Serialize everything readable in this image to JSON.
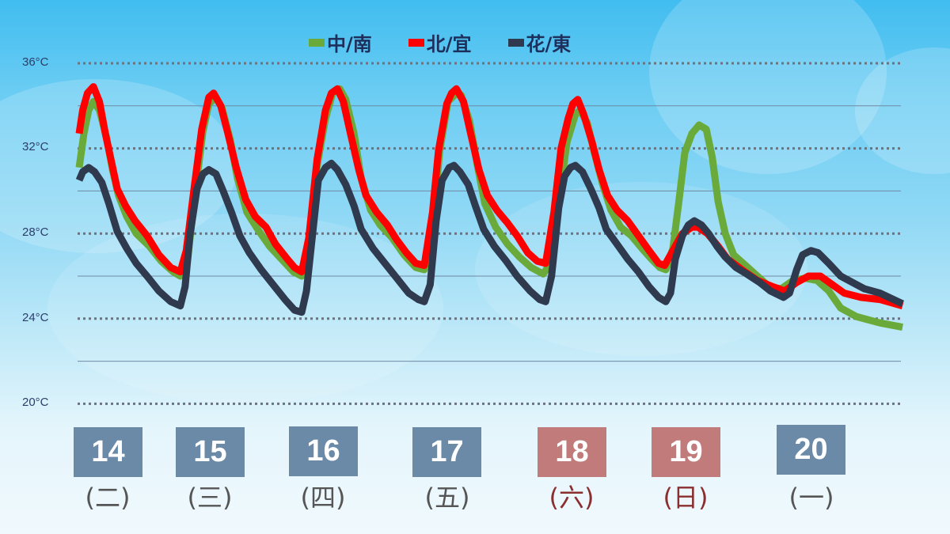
{
  "chart_data": {
    "type": "line",
    "title": "",
    "xlabel": "",
    "ylabel": "",
    "ylim": [
      20,
      36
    ],
    "yticks": [
      "36°C",
      "32°C",
      "28°C",
      "24°C",
      "20°C"
    ],
    "grid": "dotted at 36/32/28/24/20, solid at 34/30/26/22",
    "legend_position": "top",
    "categories": [
      {
        "date": "14",
        "weekday": "(二)",
        "weekend": false
      },
      {
        "date": "15",
        "weekday": "(三)",
        "weekend": false
      },
      {
        "date": "16",
        "weekday": "(四)",
        "weekend": false
      },
      {
        "date": "17",
        "weekday": "(五)",
        "weekend": false
      },
      {
        "date": "18",
        "weekday": "(六)",
        "weekend": true
      },
      {
        "date": "19",
        "weekday": "(日)",
        "weekend": true
      },
      {
        "date": "20",
        "weekday": "(一)",
        "weekend": false
      }
    ],
    "x_note": "x = position in days from chart start (0 = left edge of lines)",
    "series": [
      {
        "name": "中/南",
        "color": "#6aaa3a",
        "points": [
          [
            0,
            31.1
          ],
          [
            0.04,
            32.7
          ],
          [
            0.08,
            33.8
          ],
          [
            0.12,
            34.2
          ],
          [
            0.17,
            33.8
          ],
          [
            0.23,
            32.5
          ],
          [
            0.28,
            31.0
          ],
          [
            0.33,
            29.8
          ],
          [
            0.4,
            28.8
          ],
          [
            0.48,
            28.0
          ],
          [
            0.59,
            27.4
          ],
          [
            0.69,
            26.7
          ],
          [
            0.79,
            26.2
          ],
          [
            0.85,
            26.0
          ],
          [
            0.91,
            26.7
          ],
          [
            0.97,
            29.7
          ],
          [
            1.04,
            32.8
          ],
          [
            1.09,
            34.1
          ],
          [
            1.15,
            34.4
          ],
          [
            1.2,
            33.9
          ],
          [
            1.27,
            32.4
          ],
          [
            1.33,
            30.6
          ],
          [
            1.41,
            29.0
          ],
          [
            1.5,
            28.2
          ],
          [
            1.6,
            27.4
          ],
          [
            1.7,
            26.8
          ],
          [
            1.8,
            26.2
          ],
          [
            1.87,
            26.0
          ],
          [
            1.93,
            27.5
          ],
          [
            2.0,
            31.2
          ],
          [
            2.07,
            33.4
          ],
          [
            2.13,
            34.6
          ],
          [
            2.19,
            34.8
          ],
          [
            2.24,
            34.3
          ],
          [
            2.31,
            32.7
          ],
          [
            2.37,
            30.6
          ],
          [
            2.45,
            29.1
          ],
          [
            2.53,
            28.4
          ],
          [
            2.63,
            27.8
          ],
          [
            2.73,
            27.0
          ],
          [
            2.83,
            26.4
          ],
          [
            2.9,
            26.3
          ],
          [
            2.97,
            28.2
          ],
          [
            3.03,
            31.9
          ],
          [
            3.1,
            34.2
          ],
          [
            3.17,
            34.6
          ],
          [
            3.21,
            34.5
          ],
          [
            3.28,
            33.3
          ],
          [
            3.35,
            31.1
          ],
          [
            3.41,
            29.4
          ],
          [
            3.5,
            28.3
          ],
          [
            3.6,
            27.5
          ],
          [
            3.7,
            26.9
          ],
          [
            3.8,
            26.4
          ],
          [
            3.9,
            26.1
          ],
          [
            3.97,
            26.7
          ],
          [
            4.03,
            29.5
          ],
          [
            4.1,
            32.3
          ],
          [
            4.17,
            33.6
          ],
          [
            4.21,
            33.8
          ],
          [
            4.27,
            33.2
          ],
          [
            4.33,
            31.8
          ],
          [
            4.4,
            30.3
          ],
          [
            4.47,
            29.1
          ],
          [
            4.55,
            28.3
          ],
          [
            4.64,
            27.9
          ],
          [
            4.73,
            27.3
          ],
          [
            4.81,
            26.8
          ],
          [
            4.88,
            26.4
          ],
          [
            4.93,
            26.3
          ],
          [
            4.99,
            27.3
          ],
          [
            5.04,
            29.5
          ],
          [
            5.09,
            31.8
          ],
          [
            5.15,
            32.7
          ],
          [
            5.21,
            33.1
          ],
          [
            5.27,
            32.9
          ],
          [
            5.32,
            31.6
          ],
          [
            5.37,
            29.5
          ],
          [
            5.43,
            28.0
          ],
          [
            5.5,
            27.0
          ],
          [
            5.6,
            26.5
          ],
          [
            5.7,
            26.0
          ],
          [
            5.8,
            25.5
          ],
          [
            5.9,
            25.4
          ],
          [
            6.0,
            25.8
          ],
          [
            6.1,
            25.9
          ],
          [
            6.2,
            25.8
          ],
          [
            6.3,
            25.3
          ],
          [
            6.4,
            24.5
          ],
          [
            6.53,
            24.1
          ],
          [
            6.73,
            23.8
          ],
          [
            6.92,
            23.6
          ]
        ]
      },
      {
        "name": "北/宜",
        "color": "#ff0000",
        "points": [
          [
            0,
            32.7
          ],
          [
            0.03,
            33.8
          ],
          [
            0.07,
            34.6
          ],
          [
            0.12,
            34.9
          ],
          [
            0.17,
            34.2
          ],
          [
            0.22,
            32.7
          ],
          [
            0.27,
            31.4
          ],
          [
            0.32,
            30.1
          ],
          [
            0.39,
            29.3
          ],
          [
            0.47,
            28.6
          ],
          [
            0.57,
            27.9
          ],
          [
            0.67,
            27.0
          ],
          [
            0.77,
            26.4
          ],
          [
            0.85,
            26.2
          ],
          [
            0.9,
            27.2
          ],
          [
            0.97,
            30.3
          ],
          [
            1.03,
            32.9
          ],
          [
            1.09,
            34.4
          ],
          [
            1.13,
            34.6
          ],
          [
            1.19,
            34.0
          ],
          [
            1.25,
            32.7
          ],
          [
            1.32,
            31.1
          ],
          [
            1.4,
            29.6
          ],
          [
            1.48,
            28.8
          ],
          [
            1.57,
            28.3
          ],
          [
            1.65,
            27.5
          ],
          [
            1.75,
            26.8
          ],
          [
            1.81,
            26.4
          ],
          [
            1.87,
            26.2
          ],
          [
            1.93,
            27.8
          ],
          [
            2.0,
            31.5
          ],
          [
            2.07,
            33.8
          ],
          [
            2.12,
            34.6
          ],
          [
            2.17,
            34.8
          ],
          [
            2.22,
            34.2
          ],
          [
            2.28,
            32.7
          ],
          [
            2.35,
            31.0
          ],
          [
            2.41,
            29.8
          ],
          [
            2.5,
            29.0
          ],
          [
            2.59,
            28.4
          ],
          [
            2.67,
            27.7
          ],
          [
            2.75,
            27.1
          ],
          [
            2.83,
            26.6
          ],
          [
            2.9,
            26.5
          ],
          [
            2.97,
            29.0
          ],
          [
            3.02,
            31.9
          ],
          [
            3.09,
            34.1
          ],
          [
            3.13,
            34.6
          ],
          [
            3.17,
            34.8
          ],
          [
            3.23,
            34.2
          ],
          [
            3.29,
            32.7
          ],
          [
            3.36,
            31.0
          ],
          [
            3.43,
            29.8
          ],
          [
            3.51,
            29.1
          ],
          [
            3.6,
            28.5
          ],
          [
            3.68,
            27.9
          ],
          [
            3.77,
            27.1
          ],
          [
            3.85,
            26.7
          ],
          [
            3.92,
            26.6
          ],
          [
            3.99,
            29.0
          ],
          [
            4.05,
            32.0
          ],
          [
            4.11,
            33.4
          ],
          [
            4.15,
            34.1
          ],
          [
            4.19,
            34.3
          ],
          [
            4.24,
            33.6
          ],
          [
            4.31,
            32.3
          ],
          [
            4.37,
            31.0
          ],
          [
            4.44,
            29.8
          ],
          [
            4.52,
            29.1
          ],
          [
            4.61,
            28.6
          ],
          [
            4.7,
            27.9
          ],
          [
            4.79,
            27.2
          ],
          [
            4.87,
            26.6
          ],
          [
            4.92,
            26.5
          ],
          [
            4.99,
            27.2
          ],
          [
            5.07,
            28.0
          ],
          [
            5.15,
            28.3
          ],
          [
            5.2,
            28.3
          ],
          [
            5.28,
            28.0
          ],
          [
            5.37,
            27.4
          ],
          [
            5.45,
            26.8
          ],
          [
            5.57,
            26.3
          ],
          [
            5.7,
            25.8
          ],
          [
            5.83,
            25.5
          ],
          [
            5.93,
            25.3
          ],
          [
            6.03,
            25.7
          ],
          [
            6.13,
            26.0
          ],
          [
            6.23,
            26.0
          ],
          [
            6.33,
            25.6
          ],
          [
            6.43,
            25.2
          ],
          [
            6.57,
            25.0
          ],
          [
            6.73,
            24.9
          ],
          [
            6.92,
            24.6
          ]
        ]
      },
      {
        "name": "花/東",
        "color": "#2f3a4e",
        "points": [
          [
            0,
            30.5
          ],
          [
            0.03,
            30.9
          ],
          [
            0.08,
            31.1
          ],
          [
            0.13,
            30.9
          ],
          [
            0.19,
            30.4
          ],
          [
            0.25,
            29.4
          ],
          [
            0.32,
            28.1
          ],
          [
            0.4,
            27.3
          ],
          [
            0.48,
            26.6
          ],
          [
            0.57,
            26.0
          ],
          [
            0.67,
            25.3
          ],
          [
            0.77,
            24.8
          ],
          [
            0.85,
            24.6
          ],
          [
            0.89,
            25.5
          ],
          [
            0.93,
            27.9
          ],
          [
            0.99,
            30.1
          ],
          [
            1.04,
            30.8
          ],
          [
            1.09,
            31.0
          ],
          [
            1.15,
            30.8
          ],
          [
            1.21,
            30.0
          ],
          [
            1.28,
            29.0
          ],
          [
            1.35,
            27.9
          ],
          [
            1.43,
            27.1
          ],
          [
            1.53,
            26.3
          ],
          [
            1.63,
            25.6
          ],
          [
            1.73,
            24.9
          ],
          [
            1.81,
            24.4
          ],
          [
            1.87,
            24.3
          ],
          [
            1.91,
            25.3
          ],
          [
            1.96,
            27.9
          ],
          [
            2.01,
            30.5
          ],
          [
            2.07,
            31.1
          ],
          [
            2.12,
            31.3
          ],
          [
            2.17,
            31.0
          ],
          [
            2.24,
            30.3
          ],
          [
            2.31,
            29.3
          ],
          [
            2.37,
            28.2
          ],
          [
            2.47,
            27.3
          ],
          [
            2.57,
            26.6
          ],
          [
            2.67,
            25.9
          ],
          [
            2.77,
            25.2
          ],
          [
            2.85,
            24.9
          ],
          [
            2.9,
            24.8
          ],
          [
            2.95,
            25.6
          ],
          [
            3.0,
            28.6
          ],
          [
            3.05,
            30.5
          ],
          [
            3.11,
            31.1
          ],
          [
            3.15,
            31.2
          ],
          [
            3.2,
            30.9
          ],
          [
            3.27,
            30.3
          ],
          [
            3.33,
            29.3
          ],
          [
            3.4,
            28.2
          ],
          [
            3.49,
            27.4
          ],
          [
            3.59,
            26.7
          ],
          [
            3.68,
            26.0
          ],
          [
            3.79,
            25.3
          ],
          [
            3.87,
            24.9
          ],
          [
            3.92,
            24.8
          ],
          [
            3.97,
            26.0
          ],
          [
            4.03,
            29.2
          ],
          [
            4.08,
            30.7
          ],
          [
            4.13,
            31.1
          ],
          [
            4.17,
            31.2
          ],
          [
            4.23,
            30.9
          ],
          [
            4.3,
            30.1
          ],
          [
            4.37,
            29.2
          ],
          [
            4.43,
            28.2
          ],
          [
            4.52,
            27.5
          ],
          [
            4.61,
            26.8
          ],
          [
            4.7,
            26.2
          ],
          [
            4.79,
            25.5
          ],
          [
            4.87,
            25.0
          ],
          [
            4.93,
            24.8
          ],
          [
            4.97,
            25.2
          ],
          [
            5.01,
            26.8
          ],
          [
            5.07,
            27.9
          ],
          [
            5.12,
            28.4
          ],
          [
            5.17,
            28.6
          ],
          [
            5.23,
            28.4
          ],
          [
            5.29,
            28.0
          ],
          [
            5.36,
            27.4
          ],
          [
            5.43,
            26.9
          ],
          [
            5.52,
            26.4
          ],
          [
            5.61,
            26.1
          ],
          [
            5.72,
            25.7
          ],
          [
            5.81,
            25.3
          ],
          [
            5.92,
            25.0
          ],
          [
            5.97,
            25.2
          ],
          [
            6.03,
            26.3
          ],
          [
            6.08,
            27.0
          ],
          [
            6.15,
            27.2
          ],
          [
            6.21,
            27.1
          ],
          [
            6.3,
            26.6
          ],
          [
            6.4,
            26.0
          ],
          [
            6.5,
            25.7
          ],
          [
            6.6,
            25.4
          ],
          [
            6.73,
            25.2
          ],
          [
            6.92,
            24.7
          ]
        ]
      }
    ]
  },
  "legend": [
    {
      "label": "中/南",
      "color": "#6aaa3a"
    },
    {
      "label": "北/宜",
      "color": "#ff0000"
    },
    {
      "label": "花/東",
      "color": "#2f3a4e"
    }
  ],
  "y_axis": {
    "labels": [
      "36°C",
      "32°C",
      "28°C",
      "24°C",
      "20°C"
    ]
  },
  "days": [
    {
      "date": "14",
      "weekday": "(二)"
    },
    {
      "date": "15",
      "weekday": "(三)"
    },
    {
      "date": "16",
      "weekday": "(四)"
    },
    {
      "date": "17",
      "weekday": "(五)"
    },
    {
      "date": "18",
      "weekday": "(六)"
    },
    {
      "date": "19",
      "weekday": "(日)"
    },
    {
      "date": "20",
      "weekday": "(一)"
    }
  ],
  "colors": {
    "weekday_badge": "#6a8aa8",
    "weekend_badge": "#c07b7a",
    "weekday_text": "#555555",
    "weekend_text": "#8b2e2e"
  }
}
